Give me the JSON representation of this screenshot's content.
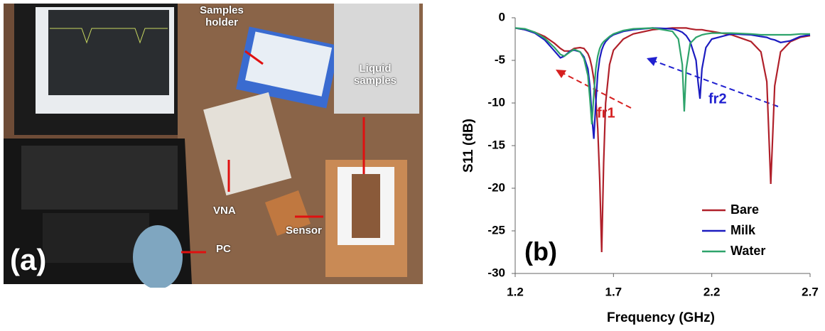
{
  "photo": {
    "panel_label": "(a)",
    "labels": {
      "holder": "Samples holder",
      "liquid": "Liquid samples",
      "vna": "VNA",
      "pc": "PC",
      "sensor": "Sensor"
    }
  },
  "chart_data": {
    "type": "line",
    "panel_label": "(b)",
    "x_label": "Frequency (GHz)",
    "y_label": "S11 (dB)",
    "annotations": [
      {
        "text": "fr1",
        "color": "#d62020"
      },
      {
        "text": "fr2",
        "color": "#2020d0"
      }
    ],
    "xlim": [
      1.2,
      2.7
    ],
    "xticks": [
      {
        "value": 1.2,
        "label": "1.2"
      },
      {
        "value": 1.7,
        "label": "1.7"
      },
      {
        "value": 2.2,
        "label": "2.2"
      },
      {
        "value": 2.7,
        "label": "2.7"
      }
    ],
    "ylim": [
      -30,
      0
    ],
    "yticks": [
      0,
      -5,
      -10,
      -15,
      -20,
      -25,
      -30
    ],
    "legend": "lower right",
    "x": [
      1.2,
      1.25,
      1.3,
      1.35,
      1.4,
      1.43,
      1.45,
      1.48,
      1.5,
      1.53,
      1.55,
      1.57,
      1.58,
      1.59,
      1.6,
      1.61,
      1.62,
      1.63,
      1.64,
      1.65,
      1.66,
      1.68,
      1.7,
      1.75,
      1.8,
      1.9,
      2.0,
      2.03,
      2.05,
      2.06,
      2.07,
      2.09,
      2.12,
      2.13,
      2.14,
      2.15,
      2.17,
      2.2,
      2.3,
      2.4,
      2.45,
      2.48,
      2.5,
      2.52,
      2.55,
      2.6,
      2.65,
      2.7
    ],
    "series": [
      {
        "name": "Bare",
        "color": "#b0202a",
        "values": [
          -1.2,
          -1.4,
          -1.7,
          -2.2,
          -3.0,
          -3.6,
          -3.9,
          -3.9,
          -3.6,
          -3.5,
          -3.6,
          -4.2,
          -4.8,
          -5.8,
          -7.2,
          -9.5,
          -13,
          -19,
          -27.5,
          -17,
          -10,
          -5.5,
          -3.8,
          -2.5,
          -1.9,
          -1.4,
          -1.2,
          -1.2,
          -1.2,
          -1.2,
          -1.2,
          -1.3,
          -1.4,
          -1.4,
          -1.4,
          -1.4,
          -1.5,
          -1.6,
          -2.0,
          -2.8,
          -4.0,
          -7.5,
          -19.5,
          -8,
          -4.0,
          -2.8,
          -2.3,
          -2.1
        ]
      },
      {
        "name": "Milk",
        "color": "#1c1cc0",
        "values": [
          -1.2,
          -1.4,
          -1.8,
          -2.6,
          -3.9,
          -4.7,
          -4.5,
          -3.9,
          -3.8,
          -4.0,
          -4.6,
          -6.0,
          -8.0,
          -11.5,
          -14.2,
          -10,
          -6.5,
          -4.8,
          -3.8,
          -3.2,
          -2.8,
          -2.3,
          -2.0,
          -1.6,
          -1.4,
          -1.2,
          -1.3,
          -1.5,
          -1.7,
          -1.9,
          -2.1,
          -2.8,
          -5,
          -7.5,
          -9.5,
          -6,
          -3.5,
          -2.5,
          -1.9,
          -2.0,
          -2.2,
          -2.3,
          -2.5,
          -2.6,
          -2.9,
          -2.7,
          -2.2,
          -2.0
        ]
      },
      {
        "name": "Water",
        "color": "#2ea36b",
        "values": [
          -1.2,
          -1.3,
          -1.7,
          -2.4,
          -3.5,
          -4.3,
          -4.5,
          -4.0,
          -3.7,
          -4.0,
          -4.8,
          -6.8,
          -9.5,
          -12.5,
          -9,
          -6,
          -4.5,
          -3.6,
          -3.1,
          -2.8,
          -2.6,
          -2.2,
          -1.9,
          -1.5,
          -1.3,
          -1.2,
          -1.6,
          -2.5,
          -5.5,
          -11,
          -6,
          -3,
          -2.3,
          -2.2,
          -2.1,
          -2.0,
          -1.9,
          -1.8,
          -1.8,
          -1.9,
          -2.0,
          -2.0,
          -2.0,
          -2.0,
          -2.0,
          -2.0,
          -1.9,
          -1.9
        ]
      }
    ]
  }
}
